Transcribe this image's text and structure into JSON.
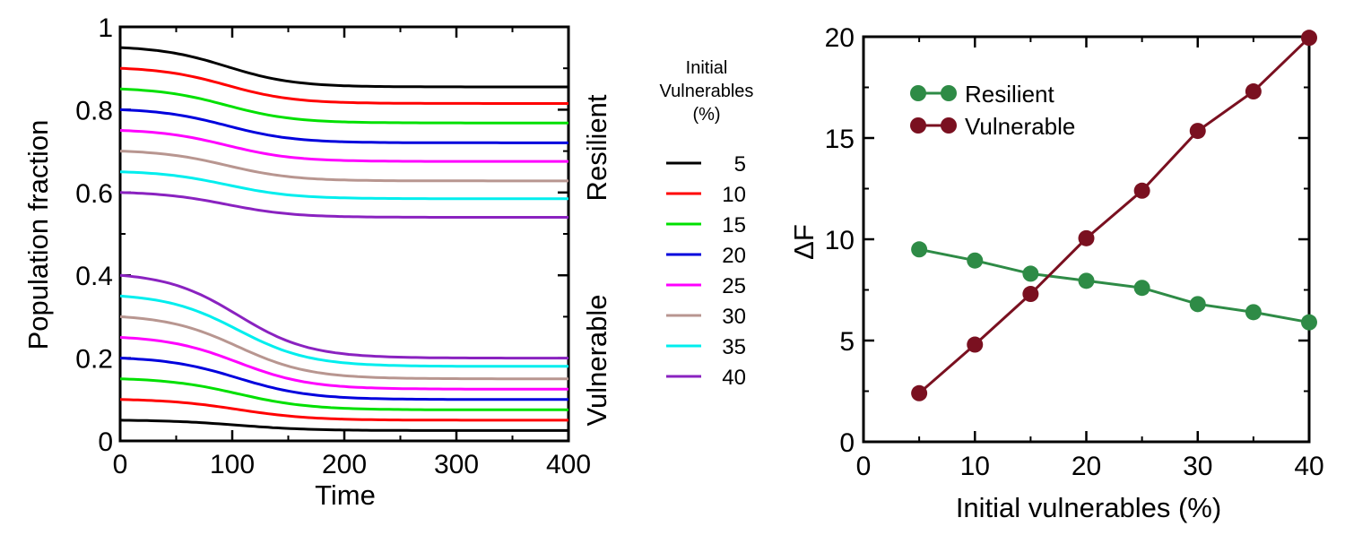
{
  "chart_data": [
    {
      "type": "line",
      "xlabel": "Time",
      "ylabel": "Population fraction",
      "xlim": [
        0,
        400
      ],
      "ylim": [
        0,
        1
      ],
      "x_ticks": [
        "0",
        "100",
        "200",
        "300",
        "400"
      ],
      "y_ticks": [
        "0",
        "0.2",
        "0.4",
        "0.6",
        "0.8",
        "1"
      ],
      "x_tick_values": [
        0,
        100,
        200,
        300,
        400
      ],
      "y_tick_values": [
        0,
        0.2,
        0.4,
        0.6,
        0.8,
        1
      ],
      "group_labels": {
        "resilient": "Resilient",
        "vulnerable": "Vulnerable"
      },
      "group_colors": {
        "resilient": "#2e8b46",
        "vulnerable": "#7a1020"
      },
      "legend": {
        "title": [
          "Initial",
          "Vulnerables",
          "(%)"
        ],
        "entries": [
          "5",
          "10",
          "15",
          "20",
          "25",
          "30",
          "35",
          "40"
        ]
      },
      "series": [
        {
          "name": "5",
          "color": "#000000",
          "resilient": {
            "start": 0.95,
            "end": 0.855
          },
          "vulnerable": {
            "start": 0.05,
            "end": 0.025
          }
        },
        {
          "name": "10",
          "color": "#ff0000",
          "resilient": {
            "start": 0.9,
            "end": 0.815
          },
          "vulnerable": {
            "start": 0.1,
            "end": 0.05
          }
        },
        {
          "name": "15",
          "color": "#00e000",
          "resilient": {
            "start": 0.85,
            "end": 0.768
          },
          "vulnerable": {
            "start": 0.15,
            "end": 0.075
          }
        },
        {
          "name": "20",
          "color": "#0000dd",
          "resilient": {
            "start": 0.8,
            "end": 0.72
          },
          "vulnerable": {
            "start": 0.2,
            "end": 0.1
          }
        },
        {
          "name": "25",
          "color": "#ff00ff",
          "resilient": {
            "start": 0.75,
            "end": 0.675
          },
          "vulnerable": {
            "start": 0.25,
            "end": 0.125
          }
        },
        {
          "name": "30",
          "color": "#b89690",
          "resilient": {
            "start": 0.7,
            "end": 0.628
          },
          "vulnerable": {
            "start": 0.3,
            "end": 0.15
          }
        },
        {
          "name": "35",
          "color": "#00eeee",
          "resilient": {
            "start": 0.65,
            "end": 0.585
          },
          "vulnerable": {
            "start": 0.35,
            "end": 0.18
          }
        },
        {
          "name": "40",
          "color": "#8a22c0",
          "resilient": {
            "start": 0.6,
            "end": 0.54
          },
          "vulnerable": {
            "start": 0.4,
            "end": 0.2
          }
        }
      ]
    },
    {
      "type": "line",
      "xlabel": "Initial vulnerables (%)",
      "ylabel": "ΔF",
      "xlim": [
        0,
        40
      ],
      "ylim": [
        0,
        20
      ],
      "x_ticks": [
        "0",
        "10",
        "20",
        "30",
        "40"
      ],
      "y_ticks": [
        "0",
        "5",
        "10",
        "15",
        "20"
      ],
      "x_tick_values": [
        0,
        10,
        20,
        30,
        40
      ],
      "y_tick_values": [
        0,
        5,
        10,
        15,
        20
      ],
      "categories": [
        5,
        10,
        15,
        20,
        25,
        30,
        35,
        40
      ],
      "series": [
        {
          "name": "Resilient",
          "color": "#2e8b46",
          "values": [
            9.5,
            8.95,
            8.3,
            7.95,
            7.6,
            6.8,
            6.4,
            5.9
          ]
        },
        {
          "name": "Vulnerable",
          "color": "#7a1020",
          "values": [
            2.4,
            4.8,
            7.3,
            10.05,
            12.4,
            15.35,
            17.3,
            19.95
          ]
        }
      ]
    }
  ]
}
